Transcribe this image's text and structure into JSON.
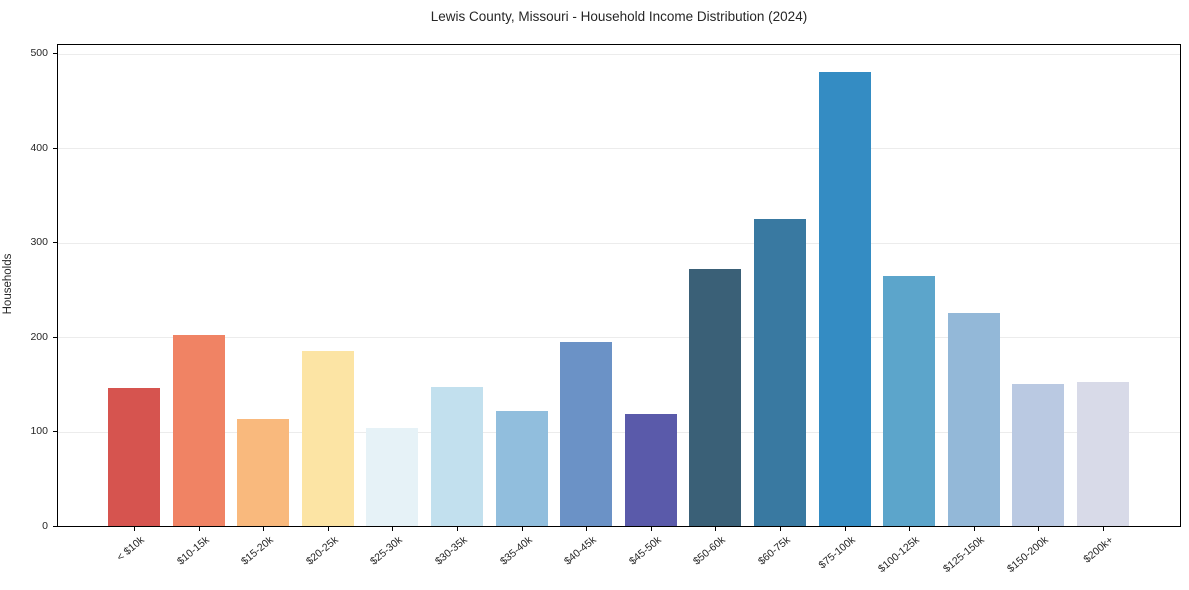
{
  "chart_data": {
    "type": "bar",
    "title": "Lewis County, Missouri - Household Income Distribution (2024)",
    "xlabel": "",
    "ylabel": "Households",
    "categories": [
      "< $10k",
      "$10-15k",
      "$15-20k",
      "$20-25k",
      "$25-30k",
      "$30-35k",
      "$35-40k",
      "$40-45k",
      "$45-50k",
      "$50-60k",
      "$60-75k",
      "$75-100k",
      "$100-125k",
      "$125-150k",
      "$150-200k",
      "$200k+"
    ],
    "values": [
      146,
      202,
      113,
      185,
      104,
      147,
      122,
      195,
      119,
      272,
      325,
      480,
      265,
      225,
      150,
      152
    ],
    "bar_colors": [
      "#d6544f",
      "#f08364",
      "#f9b97d",
      "#fce4a4",
      "#e6f2f7",
      "#c2e0ee",
      "#91bedd",
      "#6b92c6",
      "#5a5aaa",
      "#3a6077",
      "#3979a1",
      "#348cc3",
      "#5ca5cb",
      "#93b8d8",
      "#bac9e2",
      "#d8dae8"
    ],
    "yticks": [
      0,
      100,
      200,
      300,
      400,
      500
    ],
    "ylim": [
      0,
      509
    ],
    "grid": "horizontal-light",
    "legend": "none",
    "frame": "full-box",
    "xtick_rotation_deg": 40
  }
}
